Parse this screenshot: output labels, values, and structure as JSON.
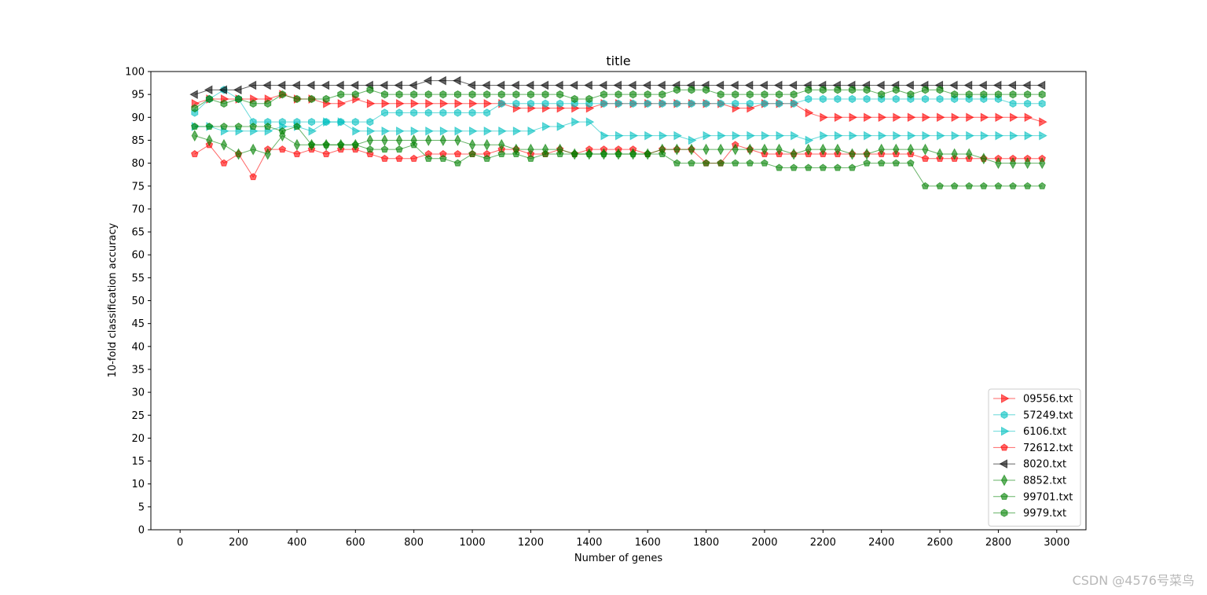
{
  "watermark": "CSDN @4576号菜鸟",
  "chart_data": {
    "type": "line",
    "title": "title",
    "xlabel": "Number of genes",
    "ylabel": "10-fold classification accuracy",
    "xlim": [
      -100,
      3100
    ],
    "ylim": [
      0,
      100
    ],
    "xticks": [
      0,
      200,
      400,
      600,
      800,
      1000,
      1200,
      1400,
      1600,
      1800,
      2000,
      2200,
      2400,
      2600,
      2800,
      3000
    ],
    "yticks": [
      0,
      5,
      10,
      15,
      20,
      25,
      30,
      35,
      40,
      45,
      50,
      55,
      60,
      65,
      70,
      75,
      80,
      85,
      90,
      95,
      100
    ],
    "legend_position": "lower-right",
    "grid": false,
    "x": [
      50,
      100,
      150,
      200,
      250,
      300,
      350,
      400,
      450,
      500,
      550,
      600,
      650,
      700,
      750,
      800,
      850,
      900,
      950,
      1000,
      1050,
      1100,
      1150,
      1200,
      1250,
      1300,
      1350,
      1400,
      1450,
      1500,
      1550,
      1600,
      1650,
      1700,
      1750,
      1800,
      1850,
      1900,
      1950,
      2000,
      2050,
      2100,
      2150,
      2200,
      2250,
      2300,
      2350,
      2400,
      2450,
      2500,
      2550,
      2600,
      2650,
      2700,
      2750,
      2800,
      2850,
      2900,
      2950
    ],
    "series": [
      {
        "name": "09556.txt",
        "color": "#ff0000",
        "marker": "triangle-right",
        "values": [
          93,
          94,
          94,
          94,
          94,
          94,
          95,
          94,
          94,
          93,
          93,
          94,
          93,
          93,
          93,
          93,
          93,
          93,
          93,
          93,
          93,
          93,
          92,
          92,
          92,
          92,
          92,
          92,
          93,
          93,
          93,
          93,
          93,
          93,
          93,
          93,
          93,
          92,
          92,
          93,
          93,
          93,
          91,
          90,
          90,
          90,
          90,
          90,
          90,
          90,
          90,
          90,
          90,
          90,
          90,
          90,
          90,
          90,
          89
        ]
      },
      {
        "name": "57249.txt",
        "color": "#00bfbf",
        "marker": "hexagon",
        "values": [
          91,
          94,
          96,
          94,
          89,
          89,
          89,
          89,
          89,
          89,
          89,
          89,
          89,
          91,
          91,
          91,
          91,
          91,
          91,
          91,
          91,
          93,
          93,
          93,
          93,
          93,
          93,
          93,
          93,
          93,
          93,
          93,
          93,
          93,
          93,
          93,
          93,
          93,
          93,
          93,
          93,
          93,
          94,
          94,
          94,
          94,
          94,
          94,
          94,
          94,
          94,
          94,
          94,
          94,
          94,
          94,
          93,
          93,
          93
        ]
      },
      {
        "name": "6106.txt",
        "color": "#00bfbf",
        "marker": "triangle-right",
        "values": [
          88,
          88,
          87,
          87,
          87,
          87,
          88,
          88,
          87,
          89,
          89,
          87,
          87,
          87,
          87,
          87,
          87,
          87,
          87,
          87,
          87,
          87,
          87,
          87,
          88,
          88,
          89,
          89,
          86,
          86,
          86,
          86,
          86,
          86,
          85,
          86,
          86,
          86,
          86,
          86,
          86,
          86,
          85,
          86,
          86,
          86,
          86,
          86,
          86,
          86,
          86,
          86,
          86,
          86,
          86,
          86,
          86,
          86,
          86
        ]
      },
      {
        "name": "72612.txt",
        "color": "#ff0000",
        "marker": "pentagon",
        "values": [
          82,
          84,
          80,
          82,
          77,
          83,
          83,
          82,
          83,
          82,
          83,
          83,
          82,
          81,
          81,
          81,
          82,
          82,
          82,
          82,
          82,
          83,
          83,
          82,
          82,
          83,
          82,
          83,
          83,
          83,
          83,
          82,
          83,
          83,
          83,
          80,
          80,
          84,
          83,
          82,
          82,
          82,
          82,
          82,
          82,
          82,
          82,
          82,
          82,
          82,
          81,
          81,
          81,
          81,
          81,
          81,
          81,
          81,
          81
        ]
      },
      {
        "name": "8020.txt",
        "color": "#000000",
        "marker": "triangle-left",
        "values": [
          95,
          96,
          96,
          96,
          97,
          97,
          97,
          97,
          97,
          97,
          97,
          97,
          97,
          97,
          97,
          97,
          98,
          98,
          98,
          97,
          97,
          97,
          97,
          97,
          97,
          97,
          97,
          97,
          97,
          97,
          97,
          97,
          97,
          97,
          97,
          97,
          97,
          97,
          97,
          97,
          97,
          97,
          97,
          97,
          97,
          97,
          97,
          97,
          97,
          97,
          97,
          97,
          97,
          97,
          97,
          97,
          97,
          97,
          97
        ]
      },
      {
        "name": "8852.txt",
        "color": "#008000",
        "marker": "thin-diamond",
        "values": [
          86,
          85,
          84,
          82,
          83,
          82,
          86,
          84,
          84,
          84,
          84,
          84,
          85,
          85,
          85,
          85,
          85,
          85,
          85,
          84,
          84,
          84,
          83,
          83,
          83,
          83,
          82,
          82,
          82,
          82,
          82,
          82,
          83,
          83,
          83,
          83,
          83,
          83,
          83,
          83,
          83,
          82,
          83,
          83,
          83,
          82,
          82,
          83,
          83,
          83,
          83,
          82,
          82,
          82,
          81,
          80,
          80,
          80,
          80
        ]
      },
      {
        "name": "99701.txt",
        "color": "#008000",
        "marker": "pentagon",
        "values": [
          88,
          88,
          88,
          88,
          88,
          88,
          87,
          88,
          84,
          84,
          84,
          84,
          83,
          83,
          83,
          84,
          81,
          81,
          80,
          82,
          81,
          82,
          82,
          81,
          82,
          82,
          82,
          82,
          82,
          82,
          82,
          82,
          82,
          80,
          80,
          80,
          80,
          80,
          80,
          80,
          79,
          79,
          79,
          79,
          79,
          79,
          80,
          80,
          80,
          80,
          75,
          75,
          75,
          75,
          75,
          75,
          75,
          75,
          75
        ]
      },
      {
        "name": "9979.txt",
        "color": "#008000",
        "marker": "hexagon",
        "values": [
          92,
          94,
          93,
          94,
          93,
          93,
          95,
          94,
          94,
          94,
          95,
          95,
          96,
          95,
          95,
          95,
          95,
          95,
          95,
          95,
          95,
          95,
          95,
          95,
          95,
          95,
          94,
          94,
          95,
          95,
          95,
          95,
          95,
          96,
          96,
          96,
          95,
          95,
          95,
          95,
          95,
          95,
          96,
          96,
          96,
          96,
          96,
          95,
          96,
          95,
          96,
          96,
          95,
          95,
          95,
          95,
          95,
          95,
          95
        ]
      }
    ]
  }
}
